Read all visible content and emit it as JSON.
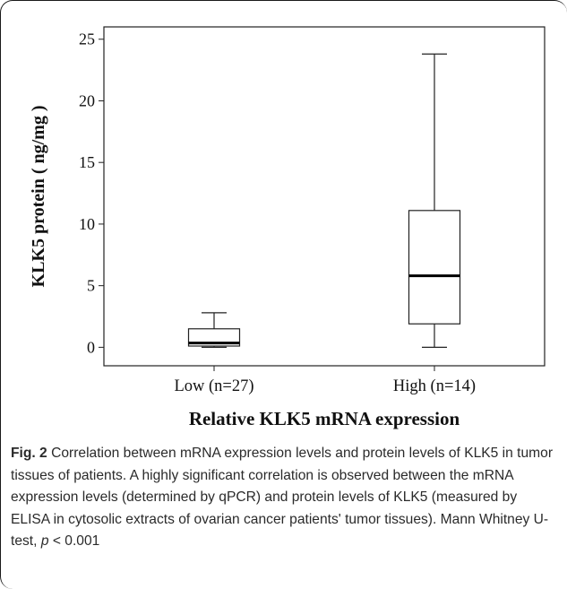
{
  "chart_data": {
    "type": "box",
    "ylabel": "KLK5 protein ( ng/mg )",
    "xlabel": "Relative KLK5 mRNA expression",
    "ylim": [
      -1.5,
      26
    ],
    "yticks": [
      0,
      5,
      10,
      15,
      20,
      25
    ],
    "categories": [
      "Low (n=27)",
      "High (n=14)"
    ],
    "boxes": [
      {
        "category": "Low (n=27)",
        "min": 0.0,
        "q1": 0.1,
        "median": 0.35,
        "q3": 1.5,
        "max": 2.8
      },
      {
        "category": "High (n=14)",
        "min": 0.0,
        "q1": 1.9,
        "median": 5.8,
        "q3": 11.1,
        "max": 23.8
      }
    ],
    "grid": false
  },
  "caption": {
    "label": "Fig. 2",
    "text": "Correlation between mRNA expression levels and protein levels of KLK5 in tumor tissues of patients. A highly significant correlation is observed between the mRNA expression levels (determined by qPCR) and protein levels of KLK5 (measured by ELISA in cytosolic extracts of ovarian cancer patients' tumor tissues). Mann Whitney U-test,",
    "p_symbol": "p",
    "p_value": "< 0.001"
  }
}
